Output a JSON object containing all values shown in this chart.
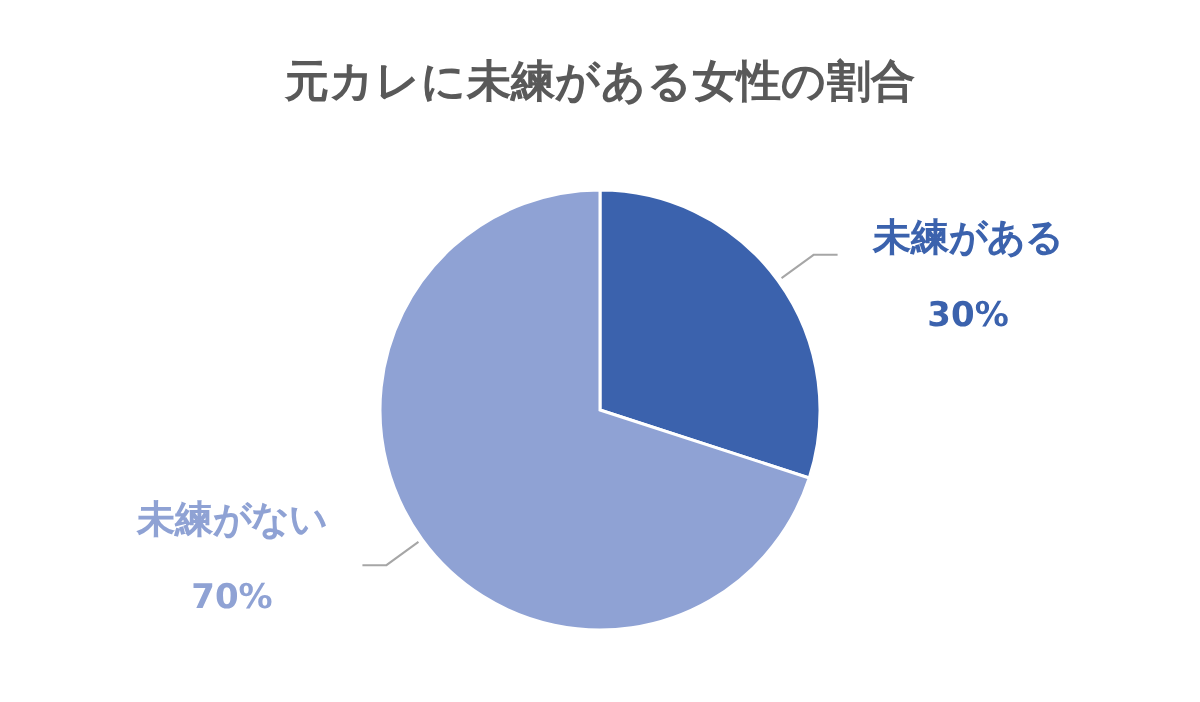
{
  "chart_data": {
    "type": "pie",
    "title": "元カレに未練がある女性の割合",
    "categories": [
      "未練がある",
      "未練がない"
    ],
    "values": [
      30,
      70
    ],
    "colors": [
      "#3b62ad",
      "#8fa2d4"
    ],
    "value_labels": [
      "30%",
      "70%"
    ]
  }
}
